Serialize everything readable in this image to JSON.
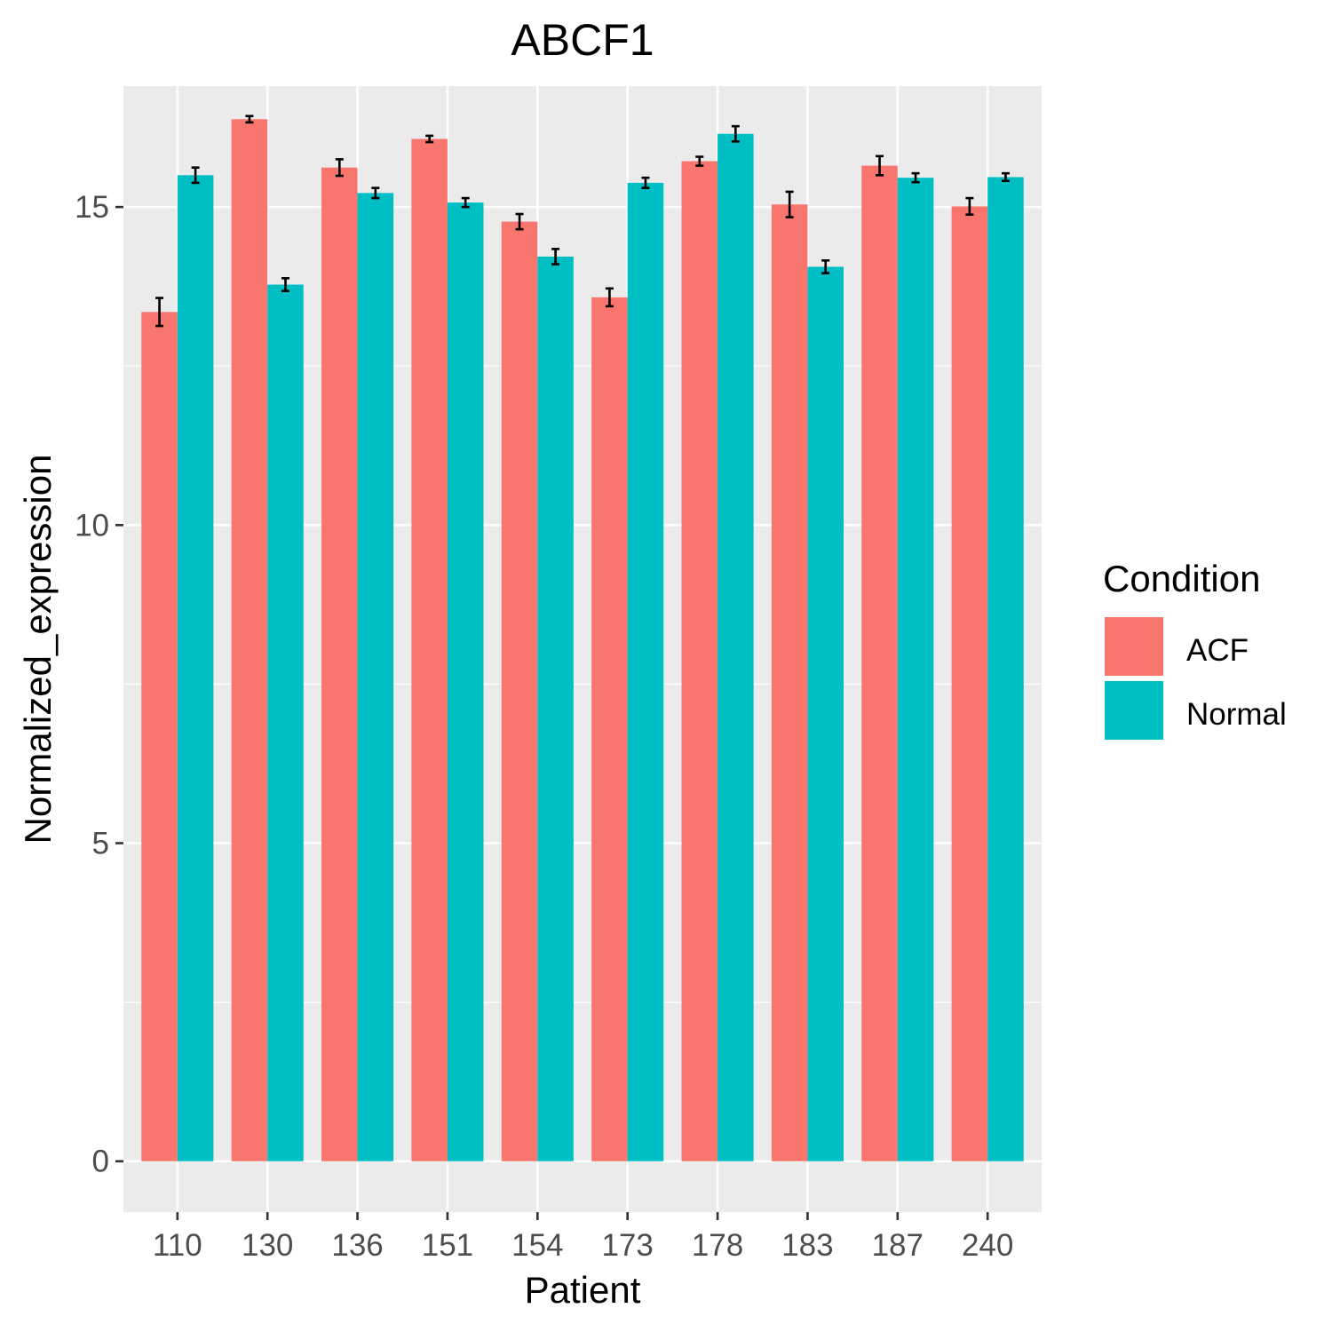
{
  "chart_data": {
    "type": "bar",
    "title": "ABCF1",
    "xlabel": "Patient",
    "ylabel": "Normalized_expression",
    "categories": [
      "110",
      "130",
      "136",
      "151",
      "154",
      "173",
      "178",
      "183",
      "187",
      "240"
    ],
    "series": [
      {
        "name": "ACF",
        "color": "#F8766D",
        "values": [
          13.35,
          16.38,
          15.62,
          16.07,
          14.77,
          13.58,
          15.72,
          15.04,
          15.65,
          15.01
        ],
        "errors": [
          0.22,
          0.05,
          0.13,
          0.05,
          0.12,
          0.14,
          0.07,
          0.2,
          0.15,
          0.13
        ]
      },
      {
        "name": "Normal",
        "color": "#00BFC4",
        "values": [
          15.5,
          13.78,
          15.22,
          15.07,
          14.22,
          15.38,
          16.15,
          14.06,
          15.46,
          15.47
        ],
        "errors": [
          0.12,
          0.1,
          0.08,
          0.07,
          0.12,
          0.08,
          0.12,
          0.1,
          0.07,
          0.06
        ]
      }
    ],
    "yticks": [
      0,
      5,
      10,
      15
    ],
    "ylim": [
      -0.8,
      16.9
    ],
    "grid": true,
    "legend": {
      "title": "Condition",
      "placement": "right"
    }
  }
}
